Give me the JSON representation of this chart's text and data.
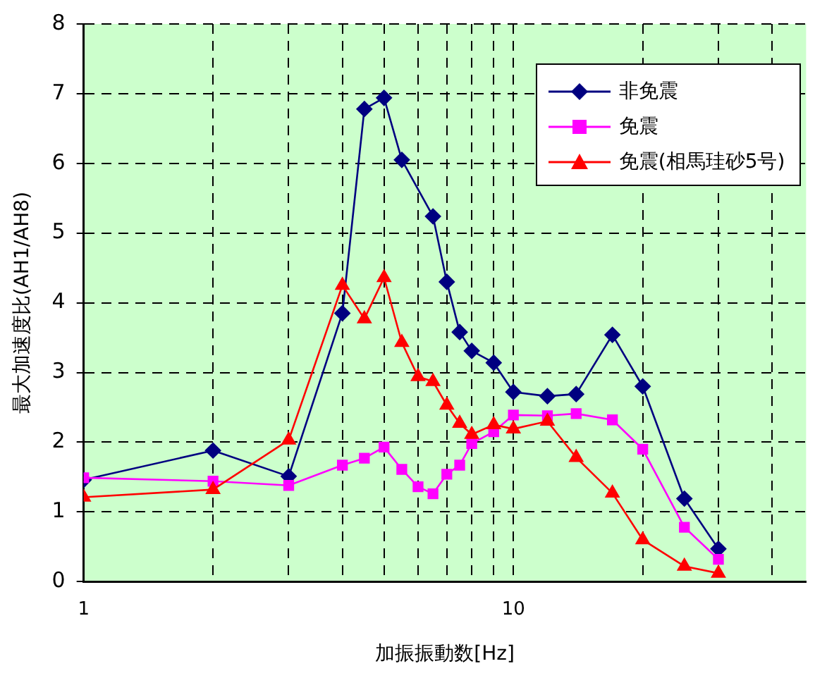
{
  "chart_data": {
    "type": "line",
    "xlabel": "加振振動数[Hz]",
    "ylabel": "最大加速度比(AH1/AH8)",
    "log": "x",
    "grid": true,
    "legend": "top right",
    "line_style": "solid",
    "xlim": [
      1,
      48
    ],
    "xticks": [
      1,
      {
        "value": 2,
        "label": null
      },
      {
        "value": 3,
        "label": null
      },
      {
        "value": 4,
        "label": null
      },
      {
        "value": 5,
        "label": null
      },
      {
        "value": 6,
        "label": null
      },
      {
        "value": 7,
        "label": null
      },
      {
        "value": 8,
        "label": null
      },
      {
        "value": 9,
        "label": null
      },
      10,
      {
        "value": 20,
        "label": null
      },
      {
        "value": 30,
        "label": null
      },
      {
        "value": 40,
        "label": null
      }
    ],
    "ylim": [
      0,
      8
    ],
    "yticks": [
      0,
      1,
      2,
      3,
      4,
      5,
      6,
      7,
      8
    ],
    "series": [
      {
        "name": "非免震",
        "color": "#000080",
        "marker": "diamond",
        "x": [
          1,
          2,
          3,
          4,
          4.5,
          5,
          5.5,
          6.5,
          7,
          7.5,
          8,
          9,
          10,
          12,
          14,
          17,
          20,
          25,
          30
        ],
        "values": [
          1.46,
          1.88,
          1.51,
          3.85,
          6.78,
          6.94,
          6.05,
          5.24,
          4.3,
          3.58,
          3.31,
          3.14,
          2.72,
          2.66,
          2.69,
          3.54,
          2.8,
          1.19,
          0.47
        ]
      },
      {
        "name": "免震",
        "color": "#ff00ff",
        "marker": "square",
        "x": [
          1,
          2,
          3,
          4,
          4.5,
          5,
          5.5,
          6,
          6.5,
          7,
          7.5,
          8,
          9,
          10,
          12,
          14,
          17,
          20,
          25,
          30
        ],
        "values": [
          1.49,
          1.44,
          1.38,
          1.67,
          1.77,
          1.93,
          1.61,
          1.36,
          1.26,
          1.54,
          1.67,
          1.98,
          2.15,
          2.39,
          2.38,
          2.41,
          2.32,
          1.9,
          0.78,
          0.32
        ]
      },
      {
        "name": "免震(相馬珪砂5号)",
        "color": "#ff0000",
        "marker": "triangle",
        "x": [
          1,
          2,
          3,
          4,
          4.5,
          5,
          5.5,
          6,
          6.5,
          7,
          7.5,
          8,
          9,
          10,
          12,
          14,
          17,
          20,
          25,
          30
        ],
        "values": [
          1.21,
          1.32,
          2.03,
          4.25,
          3.77,
          4.36,
          3.43,
          2.94,
          2.87,
          2.53,
          2.27,
          2.11,
          2.25,
          2.19,
          2.3,
          1.78,
          1.27,
          0.6,
          0.22,
          0.12
        ]
      }
    ]
  }
}
